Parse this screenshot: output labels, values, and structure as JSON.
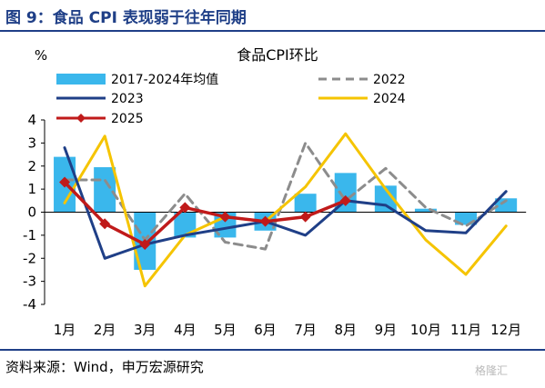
{
  "header": {
    "title": "图 9：食品 CPI 表现弱于往年同期"
  },
  "footer": {
    "source": "资料来源：Wind，申万宏源研究",
    "watermark": "格隆汇"
  },
  "chart_data": {
    "type": "bar",
    "title": "食品CPI环比",
    "ylabel": "%",
    "xlabel": "",
    "categories": [
      "1月",
      "2月",
      "3月",
      "4月",
      "5月",
      "6月",
      "7月",
      "8月",
      "9月",
      "10月",
      "11月",
      "12月"
    ],
    "ylim": [
      -4,
      4
    ],
    "yticks": [
      4,
      3,
      2,
      1,
      0,
      -1,
      -2,
      -3,
      -4
    ],
    "grid": false,
    "legend_position": "top",
    "colors": {
      "avg": "#3ab7ec",
      "s2022": "#8c8c8c",
      "s2023": "#1f3f87",
      "s2024": "#f5c400",
      "s2025": "#c01a1a"
    },
    "series": [
      {
        "name": "2017-2024年均值",
        "kind": "bar",
        "values": [
          2.4,
          1.95,
          -2.5,
          -1.1,
          -1.1,
          -0.8,
          0.8,
          1.7,
          1.15,
          0.15,
          -0.55,
          0.6
        ]
      },
      {
        "name": "2022",
        "kind": "dashed-line",
        "values": [
          1.4,
          1.4,
          -1.2,
          0.8,
          -1.3,
          -1.6,
          3.0,
          0.5,
          1.9,
          0.2,
          -0.6,
          0.5
        ]
      },
      {
        "name": "2023",
        "kind": "line",
        "values": [
          2.8,
          -2.0,
          -1.4,
          -1.0,
          -0.7,
          -0.4,
          -1.0,
          0.5,
          0.3,
          -0.8,
          -0.9,
          0.9
        ]
      },
      {
        "name": "2024",
        "kind": "line",
        "values": [
          0.4,
          3.3,
          -3.2,
          -1.0,
          -0.2,
          -0.4,
          1.1,
          3.4,
          1.0,
          -1.2,
          -2.7,
          -0.6
        ]
      },
      {
        "name": "2025",
        "kind": "marker-line",
        "values": [
          1.3,
          -0.5,
          -1.4,
          0.2,
          -0.2,
          -0.4,
          -0.2,
          0.5,
          null,
          null,
          null,
          null
        ]
      }
    ]
  }
}
